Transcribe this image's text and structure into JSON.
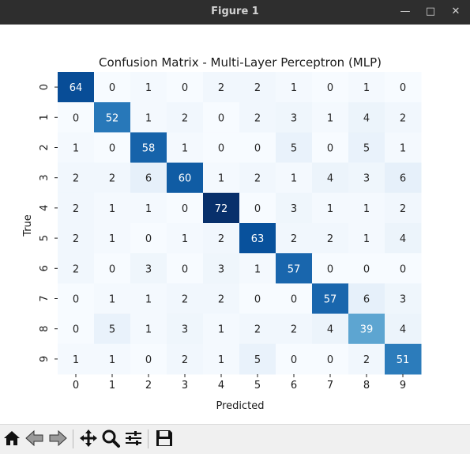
{
  "window": {
    "title": "Figure 1"
  },
  "toolbar": {
    "buttons": [
      {
        "name": "home-icon",
        "label": "Home"
      },
      {
        "name": "back-icon",
        "label": "Back"
      },
      {
        "name": "forward-icon",
        "label": "Forward"
      },
      {
        "name": "pan-icon",
        "label": "Pan"
      },
      {
        "name": "zoom-icon",
        "label": "Zoom"
      },
      {
        "name": "configure-subplots-icon",
        "label": "Subplots"
      },
      {
        "name": "save-icon",
        "label": "Save"
      }
    ]
  },
  "chart_data": {
    "type": "heatmap",
    "title": "Confusion Matrix - Multi-Layer Perceptron (MLP)",
    "xlabel": "Predicted",
    "ylabel": "True",
    "x_labels": [
      "0",
      "1",
      "2",
      "3",
      "4",
      "5",
      "6",
      "7",
      "8",
      "9"
    ],
    "y_labels": [
      "0",
      "1",
      "2",
      "3",
      "4",
      "5",
      "6",
      "7",
      "8",
      "9"
    ],
    "colormap": "Blues",
    "vmin": 0,
    "vmax": 72,
    "matrix": [
      [
        64,
        0,
        1,
        0,
        2,
        2,
        1,
        0,
        1,
        0
      ],
      [
        0,
        52,
        1,
        2,
        0,
        2,
        3,
        1,
        4,
        2
      ],
      [
        1,
        0,
        58,
        1,
        0,
        0,
        5,
        0,
        5,
        1
      ],
      [
        2,
        2,
        6,
        60,
        1,
        2,
        1,
        4,
        3,
        6
      ],
      [
        2,
        1,
        1,
        0,
        72,
        0,
        3,
        1,
        1,
        2
      ],
      [
        2,
        1,
        0,
        1,
        2,
        63,
        2,
        2,
        1,
        4
      ],
      [
        2,
        0,
        3,
        0,
        3,
        1,
        57,
        0,
        0,
        0
      ],
      [
        0,
        1,
        1,
        2,
        2,
        0,
        0,
        57,
        6,
        3
      ],
      [
        0,
        5,
        1,
        3,
        1,
        2,
        2,
        4,
        39,
        4
      ],
      [
        1,
        1,
        0,
        2,
        1,
        5,
        0,
        0,
        2,
        51
      ]
    ]
  }
}
